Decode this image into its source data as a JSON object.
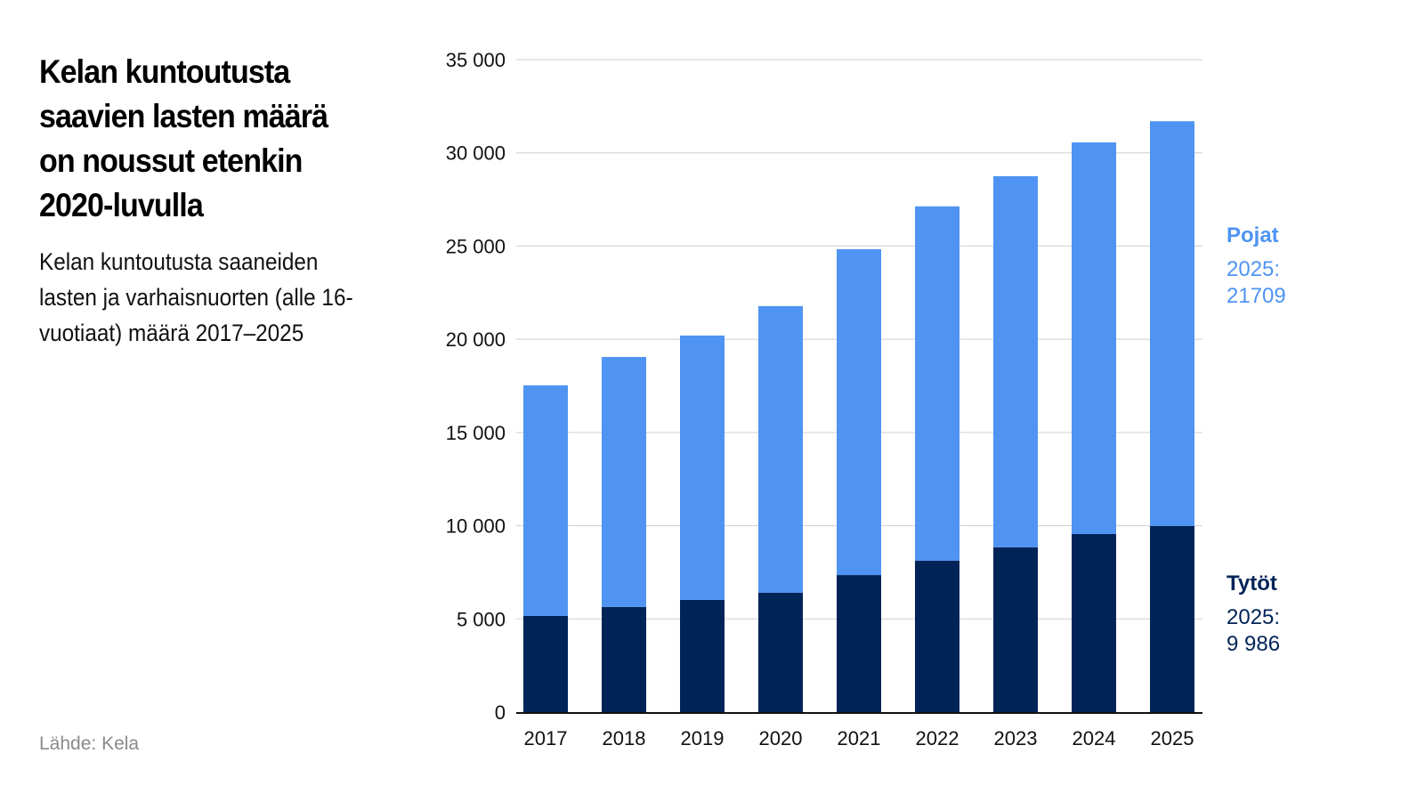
{
  "title": "Kelan kuntoutusta saavien lasten määrä on noussut etenkin 2020-luvulla",
  "subtitle": "Kelan kuntoutusta saaneiden lasten ja varhaisnuorten (alle 16-vuotiaat) määrä 2017–2025",
  "source": "Lähde: Kela",
  "chart_data": {
    "type": "bar",
    "stacked": true,
    "categories": [
      "2017",
      "2018",
      "2019",
      "2020",
      "2021",
      "2022",
      "2023",
      "2024",
      "2025"
    ],
    "series": [
      {
        "name": "Tytöt",
        "color": "#002458",
        "values": [
          5160,
          5640,
          6020,
          6400,
          7350,
          8120,
          8840,
          9550,
          9986
        ]
      },
      {
        "name": "Pojat",
        "color": "#4f94f2",
        "values": [
          12370,
          13410,
          14180,
          15380,
          17480,
          19010,
          19910,
          21010,
          21709
        ]
      }
    ],
    "ylim": [
      0,
      35000
    ],
    "yticks": [
      0,
      5000,
      10000,
      15000,
      20000,
      25000,
      30000,
      35000
    ],
    "ytick_labels": [
      "0",
      "5 000",
      "10 000",
      "15 000",
      "20 000",
      "25 000",
      "30 000",
      "35 000"
    ],
    "grid": true,
    "legend_placement": "right",
    "annotations": {
      "pojat": {
        "name": "Pojat",
        "label": "2025:",
        "value": "21709"
      },
      "tytot": {
        "name": "Tytöt",
        "label": "2025:",
        "value": "9 986"
      }
    }
  }
}
